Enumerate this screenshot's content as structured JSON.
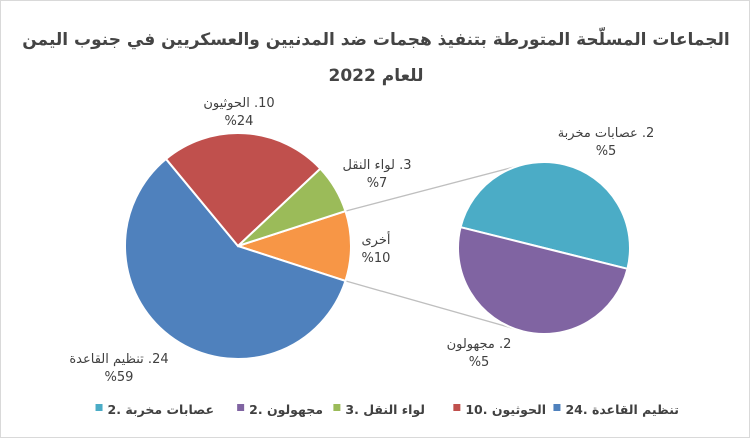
{
  "chart_data": {
    "type": "pie",
    "subtype": "pie-of-pie",
    "title_line1": "الجماعات المسلّحة المتورطة بتنفيذ هجمات ضد المدنيين والعسكريين في جنوب اليمن",
    "title_line2": "للعام 2022",
    "slices": [
      {
        "key": "qaeda",
        "label": "24. تنظيم القاعدة",
        "value": 59,
        "percent": "%59",
        "color": "#4f81bd"
      },
      {
        "key": "houthi",
        "label": "10. الحوثيون",
        "value": 24,
        "percent": "%24",
        "color": "#c0504d"
      },
      {
        "key": "liwa",
        "label": "3. لواء النقل",
        "value": 7,
        "percent": "%7",
        "color": "#9bbb59"
      },
      {
        "key": "other",
        "label": "أخرى",
        "value": 10,
        "percent": "%10",
        "color": "#f79646"
      }
    ],
    "secondary_slices": [
      {
        "key": "gangs",
        "label": "2. عصابات مخربة",
        "value": 5,
        "percent": "%5",
        "color": "#4bacc6"
      },
      {
        "key": "unknown",
        "label": "2. مجهولون",
        "value": 5,
        "percent": "%5",
        "color": "#8064a2"
      }
    ],
    "legend": [
      {
        "label": "24. تنظيم القاعدة",
        "color": "#4f81bd"
      },
      {
        "label": "10. الحوثيون",
        "color": "#c0504d"
      },
      {
        "label": "3. لواء النقل",
        "color": "#9bbb59"
      },
      {
        "label": "2. مجهولون",
        "color": "#8064a2"
      },
      {
        "label": "2. عصابات مخربة",
        "color": "#4bacc6"
      }
    ],
    "legend_position": "bottom"
  }
}
